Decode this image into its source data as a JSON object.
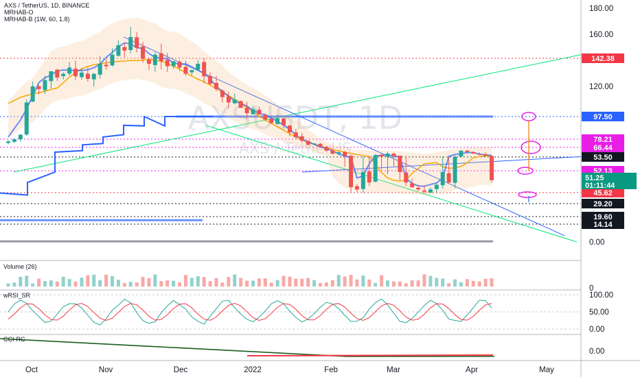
{
  "header": {
    "symbol_line": "AXS / TetherUS, 1D, BINANCE",
    "indicator_1": "MRHAB-O",
    "indicator_2": "MRHAB-B (1W, 60, 1.8)",
    "watermark_main": "AXSUSDT, 1D",
    "watermark_sub": "AXS / TetherUS"
  },
  "panes": {
    "volume_title": "Volume (26)",
    "volume_axis_label": "0",
    "rsi_title": "wRSI_SR",
    "cci_title": "CCI-RC"
  },
  "colors": {
    "up": "#26a69a",
    "down": "#ef5350",
    "red_tag": "#f23645",
    "magenta_tag": "#e91ee6",
    "blue_tag": "#2962ff",
    "dark_tag": "#131722",
    "green_tag": "#089981"
  },
  "chart_data": [
    {
      "type": "candlestick",
      "pane": "price",
      "symbol": "AXS / TetherUS",
      "interval": "1D",
      "exchange": "BINANCE",
      "x_tick_labels": [
        "Oct",
        "Nov",
        "Dec",
        "2022",
        "Feb",
        "Mar",
        "Apr",
        "May"
      ],
      "y_tick_labels": [
        "180.00",
        "160.00",
        "120.00",
        "0.00"
      ],
      "ylim": [
        0,
        185
      ],
      "last_price": 51.25,
      "countdown": "01:11:44",
      "price_tags": [
        {
          "value": 142.38,
          "label": "142.38",
          "style": "red"
        },
        {
          "value": 97.5,
          "label": "97.50",
          "style": "blue"
        },
        {
          "value": 78.21,
          "label": "78.21",
          "style": "magenta"
        },
        {
          "value": 66.44,
          "label": "66.44",
          "style": "magenta"
        },
        {
          "value": 53.5,
          "label": "53.50",
          "style": "dark"
        },
        {
          "value": 52.13,
          "label": "52.13",
          "style": "magenta"
        },
        {
          "value": 45.62,
          "label": "45.62",
          "style": "red"
        },
        {
          "value": 29.2,
          "label": "29.20",
          "style": "dark"
        },
        {
          "value": 19.6,
          "label": "19.60",
          "style": "dark"
        },
        {
          "value": 14.14,
          "label": "14.14",
          "style": "dark"
        }
      ],
      "closes": [
        75,
        78,
        82,
        108,
        120,
        118,
        125,
        132,
        127,
        130,
        135,
        128,
        131,
        126,
        130,
        138,
        136,
        145,
        152,
        148,
        158,
        150,
        142,
        138,
        145,
        140,
        136,
        140,
        135,
        130,
        133,
        138,
        128,
        122,
        118,
        112,
        108,
        110,
        104,
        100,
        103,
        99,
        95,
        92,
        96,
        90,
        84,
        80,
        76,
        70,
        72,
        67,
        62,
        58,
        60,
        55,
        48,
        47,
        52,
        50,
        56,
        54,
        58,
        55,
        52,
        50,
        48,
        47,
        46,
        47,
        49,
        52,
        50,
        54,
        62,
        60,
        58,
        57,
        55,
        51
      ]
    },
    {
      "type": "bar",
      "pane": "volume",
      "title": "Volume (26)"
    },
    {
      "type": "line",
      "pane": "wRSI_SR",
      "title": "wRSI_SR",
      "y_tick_labels": [
        "100.00",
        "50.00",
        "0.00"
      ],
      "ylim": [
        0,
        100
      ]
    },
    {
      "type": "line",
      "pane": "CCI-RC",
      "title": "CCI-RC",
      "y_tick_labels": [
        "0.00"
      ]
    }
  ]
}
